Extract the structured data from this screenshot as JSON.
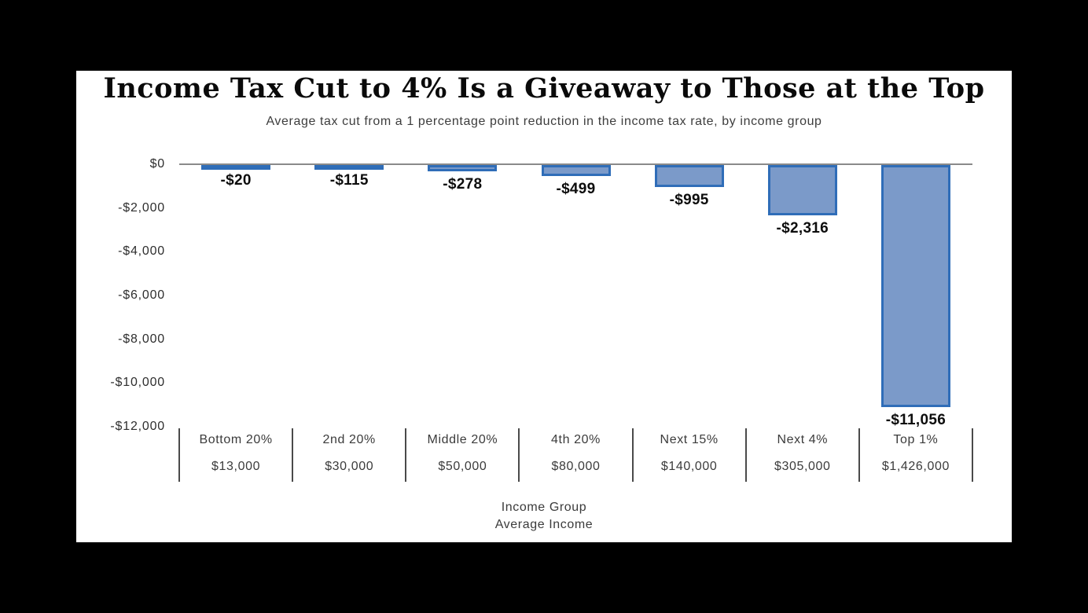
{
  "chart_data": {
    "type": "bar",
    "title": "Income Tax Cut to 4% Is a Giveaway to Those at the Top",
    "subtitle": "Average tax cut from a 1 percentage point reduction in the income tax rate, by income group",
    "categories": [
      "Bottom 20%",
      "2nd 20%",
      "Middle 20%",
      "4th 20%",
      "Next 15%",
      "Next 4%",
      "Top 1%"
    ],
    "average_incomes": [
      "$13,000",
      "$30,000",
      "$50,000",
      "$80,000",
      "$140,000",
      "$305,000",
      "$1,426,000"
    ],
    "values": [
      -20,
      -115,
      -278,
      -499,
      -995,
      -2316,
      -11056
    ],
    "value_labels": [
      "-$20",
      "-$115",
      "-$278",
      "-$499",
      "-$995",
      "-$2,316",
      "-$11,056"
    ],
    "y_ticks": [
      0,
      -2000,
      -4000,
      -6000,
      -8000,
      -10000,
      -12000
    ],
    "y_tick_labels": [
      "$0",
      "-$2,000",
      "-$4,000",
      "-$6,000",
      "-$8,000",
      "-$10,000",
      "-$12,000"
    ],
    "ylim": [
      -12000,
      0
    ],
    "xlabel_line1": "Income Group",
    "xlabel_line2": "Average Income",
    "grid": false,
    "legend": false,
    "colors": {
      "bar_fill": "#7b9ac9",
      "bar_border": "#2f6db8",
      "axis_line": "#8a8a8a",
      "background": "#ffffff",
      "page_background": "#000000"
    }
  }
}
